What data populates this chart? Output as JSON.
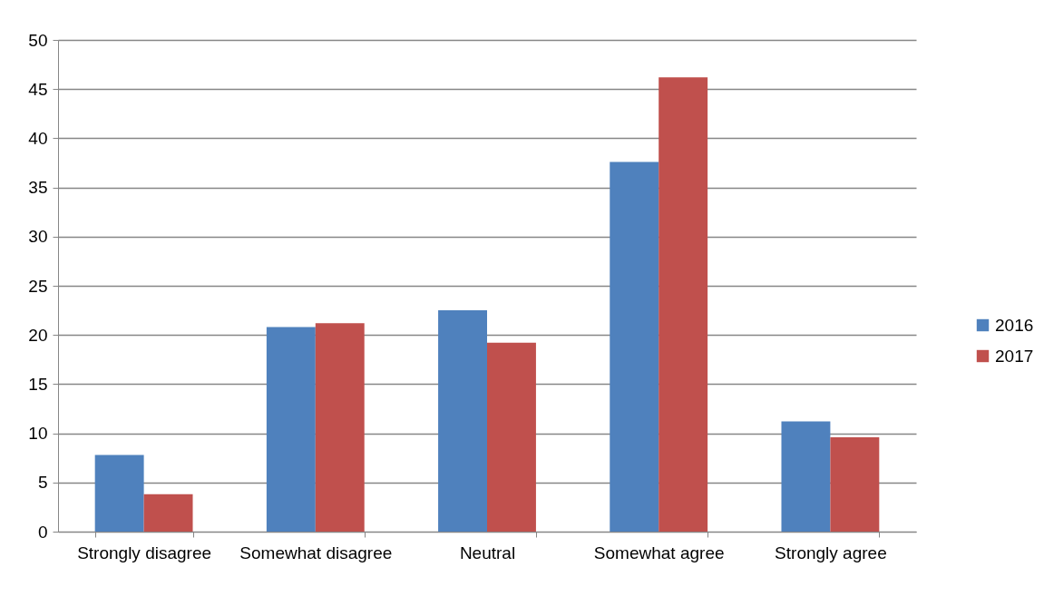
{
  "chart_data": {
    "type": "bar",
    "categories": [
      "Strongly disagree",
      "Somewhat disagree",
      "Neutral",
      "Somewhat agree",
      "Strongly agree"
    ],
    "series": [
      {
        "name": "2016",
        "color": "#4f81bd",
        "values": [
          7.8,
          20.8,
          22.5,
          37.6,
          11.2
        ]
      },
      {
        "name": "2017",
        "color": "#c0504d",
        "values": [
          3.8,
          21.2,
          19.2,
          46.2,
          9.6
        ]
      }
    ],
    "ylim": [
      0,
      50
    ],
    "yticks": [
      0,
      5,
      10,
      15,
      20,
      25,
      30,
      35,
      40,
      45,
      50
    ],
    "grid": "y",
    "legend": "right"
  }
}
